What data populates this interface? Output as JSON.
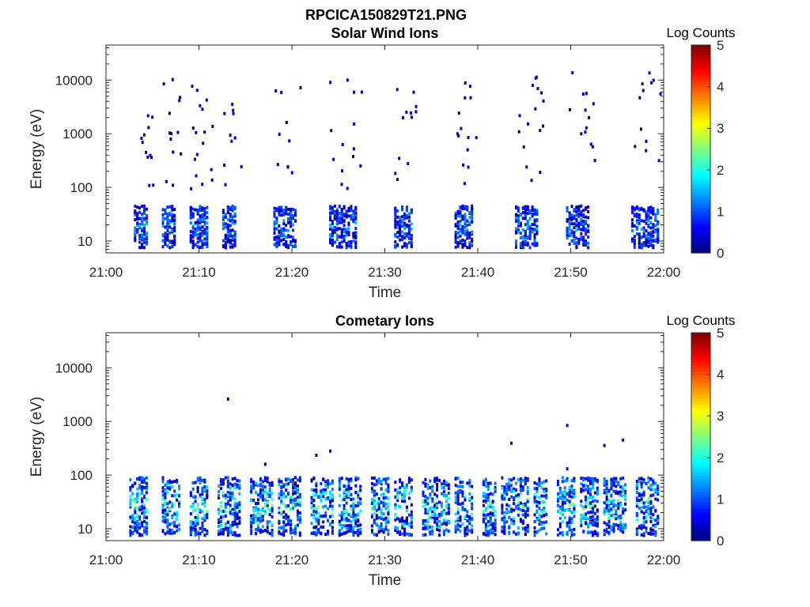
{
  "figure": {
    "title": "RPCICA150829T21.PNG"
  },
  "chart_data": [
    {
      "type": "heatmap",
      "title": "Solar Wind Ions",
      "xlabel": "Time",
      "ylabel": "Energy (eV)",
      "x_ticks": [
        "21:00",
        "21:10",
        "21:20",
        "21:30",
        "21:40",
        "21:50",
        "22:00"
      ],
      "xlim_minutes": [
        0,
        60
      ],
      "y_scale": "log",
      "y_ticks": [
        "10",
        "100",
        "1000",
        "10000"
      ],
      "ylim": [
        6,
        45000
      ],
      "colorbar": {
        "label": "Log Counts",
        "range": [
          0,
          5
        ],
        "ticks": [
          "0",
          "1",
          "2",
          "3",
          "4",
          "5"
        ],
        "colormap": "jet"
      },
      "bursts_minutes": [
        [
          3.0,
          4.5
        ],
        [
          6.0,
          7.5
        ],
        [
          9.0,
          11.0
        ],
        [
          12.5,
          14.0
        ],
        [
          18.0,
          20.5
        ],
        [
          24.0,
          27.0
        ],
        [
          31.0,
          33.0
        ],
        [
          37.5,
          39.5
        ],
        [
          44.0,
          46.5
        ],
        [
          49.5,
          52.0
        ],
        [
          56.5,
          59.5
        ]
      ],
      "summary": {
        "sparse_high_energy_range_eV": [
          100,
          15000
        ],
        "main_population_range_eV": [
          10,
          40
        ],
        "peak_log_counts": 1.6
      }
    },
    {
      "type": "heatmap",
      "title": "Cometary Ions",
      "xlabel": "Time",
      "ylabel": "Energy (eV)",
      "x_ticks": [
        "21:00",
        "21:10",
        "21:20",
        "21:30",
        "21:40",
        "21:50",
        "22:00"
      ],
      "xlim_minutes": [
        0,
        60
      ],
      "y_scale": "log",
      "y_ticks": [
        "10",
        "100",
        "1000",
        "10000"
      ],
      "ylim": [
        6,
        45000
      ],
      "colorbar": {
        "label": "Log Counts",
        "range": [
          0,
          5
        ],
        "ticks": [
          "0",
          "1",
          "2",
          "3",
          "4",
          "5"
        ],
        "colormap": "jet"
      },
      "bursts_minutes": [
        [
          2.5,
          4.5
        ],
        [
          6.0,
          8.0
        ],
        [
          9.0,
          11.0
        ],
        [
          12.0,
          14.5
        ],
        [
          15.5,
          18.0
        ],
        [
          18.5,
          21.0
        ],
        [
          22.0,
          24.5
        ],
        [
          25.0,
          27.5
        ],
        [
          28.5,
          30.5
        ],
        [
          31.0,
          33.0
        ],
        [
          34.0,
          37.0
        ],
        [
          37.5,
          39.5
        ],
        [
          40.5,
          42.0
        ],
        [
          42.5,
          45.5
        ],
        [
          46.0,
          47.5
        ],
        [
          48.5,
          50.5
        ],
        [
          51.0,
          53.0
        ],
        [
          53.5,
          56.0
        ],
        [
          57.0,
          59.5
        ]
      ],
      "summary": {
        "main_population_range_eV": [
          10,
          80
        ],
        "peak_log_counts": 2.6,
        "isolated_points": [
          {
            "time_min": 13.0,
            "energy_eV": 2800
          },
          {
            "time_min": 17.0,
            "energy_eV": 170
          },
          {
            "time_min": 22.5,
            "energy_eV": 250
          },
          {
            "time_min": 24.0,
            "energy_eV": 300
          },
          {
            "time_min": 43.5,
            "energy_eV": 420
          },
          {
            "time_min": 49.5,
            "energy_eV": 900
          },
          {
            "time_min": 49.5,
            "energy_eV": 140
          },
          {
            "time_min": 53.5,
            "energy_eV": 380
          },
          {
            "time_min": 55.5,
            "energy_eV": 480
          }
        ]
      }
    }
  ]
}
